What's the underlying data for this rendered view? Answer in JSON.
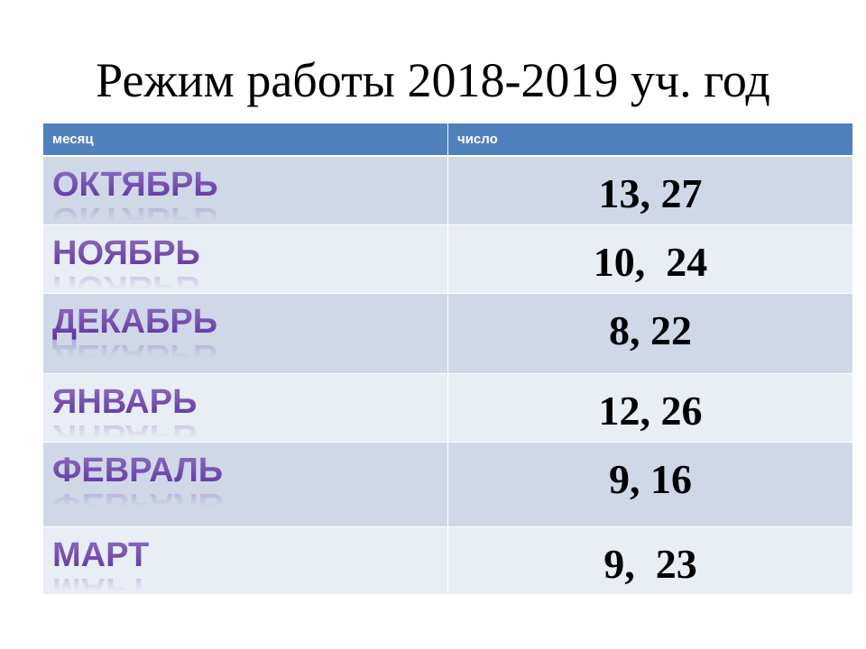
{
  "title": "Режим работы 2018-2019 уч. год",
  "table": {
    "headers": [
      "месяц",
      "число"
    ],
    "rows": [
      [
        "ОКТЯБРЬ",
        "13, 27"
      ],
      [
        "НОЯБРЬ",
        "10,  24"
      ],
      [
        "ДЕКАБРЬ",
        "8, 22"
      ],
      [
        "ЯНВАРЬ",
        "12, 26"
      ],
      [
        "ФЕВРАЛЬ",
        "9, 16"
      ],
      [
        "МАРТ",
        "9,  23"
      ]
    ]
  }
}
